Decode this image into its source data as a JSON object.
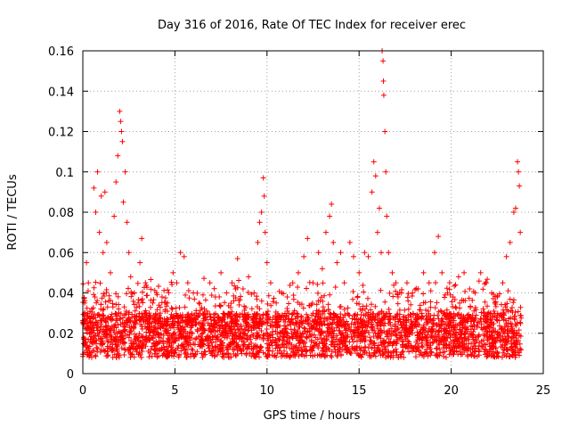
{
  "chart_data": {
    "type": "scatter",
    "title": "Day 316 of 2016, Rate Of TEC Index for receiver erec",
    "xlabel": "GPS time / hours",
    "ylabel": "ROTI / TECUs",
    "xlim": [
      0,
      25
    ],
    "ylim": [
      0,
      0.16
    ],
    "xticks": [
      0,
      5,
      10,
      15,
      20,
      25
    ],
    "xtick_labels": [
      "0",
      "5",
      "10",
      "15",
      "20",
      "25"
    ],
    "yticks": [
      0,
      0.02,
      0.04,
      0.06,
      0.08,
      0.1,
      0.12,
      0.14,
      0.16
    ],
    "ytick_labels": [
      "0",
      "0.02",
      "0.04",
      "0.06",
      "0.08",
      "0.1",
      "0.12",
      "0.14",
      "0.16"
    ],
    "grid": true,
    "marker": "plus",
    "series_color": "#ff0000",
    "x_data_range": [
      0,
      23.8
    ],
    "series": [
      {
        "points": [
          [
            0.05,
            0.018
          ],
          [
            0.1,
            0.035
          ],
          [
            0.2,
            0.055
          ],
          [
            0.3,
            0.045
          ],
          [
            0.45,
            0.025
          ],
          [
            0.6,
            0.092
          ],
          [
            0.7,
            0.08
          ],
          [
            0.8,
            0.1
          ],
          [
            0.9,
            0.07
          ],
          [
            1.0,
            0.088
          ],
          [
            1.1,
            0.06
          ],
          [
            1.2,
            0.09
          ],
          [
            1.3,
            0.065
          ],
          [
            1.5,
            0.05
          ],
          [
            1.7,
            0.078
          ],
          [
            1.8,
            0.095
          ],
          [
            1.9,
            0.108
          ],
          [
            2.0,
            0.13
          ],
          [
            2.05,
            0.125
          ],
          [
            2.1,
            0.12
          ],
          [
            2.15,
            0.115
          ],
          [
            2.2,
            0.085
          ],
          [
            2.3,
            0.1
          ],
          [
            2.4,
            0.075
          ],
          [
            2.5,
            0.06
          ],
          [
            2.6,
            0.048
          ],
          [
            2.8,
            0.04
          ],
          [
            3.0,
            0.035
          ],
          [
            3.1,
            0.055
          ],
          [
            3.2,
            0.067
          ],
          [
            3.4,
            0.045
          ],
          [
            3.6,
            0.03
          ],
          [
            3.8,
            0.035
          ],
          [
            4.0,
            0.04
          ],
          [
            4.3,
            0.038
          ],
          [
            4.6,
            0.035
          ],
          [
            4.9,
            0.05
          ],
          [
            5.1,
            0.045
          ],
          [
            5.3,
            0.06
          ],
          [
            5.5,
            0.058
          ],
          [
            5.7,
            0.045
          ],
          [
            6.0,
            0.04
          ],
          [
            6.3,
            0.035
          ],
          [
            6.6,
            0.032
          ],
          [
            6.9,
            0.045
          ],
          [
            7.2,
            0.038
          ],
          [
            7.5,
            0.05
          ],
          [
            7.8,
            0.04
          ],
          [
            8.1,
            0.045
          ],
          [
            8.4,
            0.057
          ],
          [
            8.7,
            0.042
          ],
          [
            9.0,
            0.048
          ],
          [
            9.3,
            0.04
          ],
          [
            9.5,
            0.065
          ],
          [
            9.6,
            0.075
          ],
          [
            9.7,
            0.08
          ],
          [
            9.8,
            0.097
          ],
          [
            9.85,
            0.088
          ],
          [
            9.9,
            0.07
          ],
          [
            10.0,
            0.055
          ],
          [
            10.2,
            0.045
          ],
          [
            10.5,
            0.035
          ],
          [
            10.8,
            0.04
          ],
          [
            11.1,
            0.038
          ],
          [
            11.4,
            0.045
          ],
          [
            11.7,
            0.05
          ],
          [
            12.0,
            0.058
          ],
          [
            12.2,
            0.067
          ],
          [
            12.5,
            0.045
          ],
          [
            12.8,
            0.06
          ],
          [
            13.0,
            0.052
          ],
          [
            13.2,
            0.07
          ],
          [
            13.4,
            0.078
          ],
          [
            13.5,
            0.084
          ],
          [
            13.6,
            0.065
          ],
          [
            13.8,
            0.055
          ],
          [
            14.0,
            0.06
          ],
          [
            14.2,
            0.045
          ],
          [
            14.5,
            0.065
          ],
          [
            14.7,
            0.058
          ],
          [
            15.0,
            0.05
          ],
          [
            15.3,
            0.06
          ],
          [
            15.5,
            0.058
          ],
          [
            15.7,
            0.09
          ],
          [
            15.8,
            0.105
          ],
          [
            15.9,
            0.098
          ],
          [
            16.0,
            0.07
          ],
          [
            16.1,
            0.082
          ],
          [
            16.2,
            0.06
          ],
          [
            16.25,
            0.16
          ],
          [
            16.3,
            0.155
          ],
          [
            16.32,
            0.145
          ],
          [
            16.34,
            0.138
          ],
          [
            16.4,
            0.12
          ],
          [
            16.45,
            0.1
          ],
          [
            16.5,
            0.078
          ],
          [
            16.6,
            0.06
          ],
          [
            16.8,
            0.05
          ],
          [
            17.0,
            0.045
          ],
          [
            17.3,
            0.04
          ],
          [
            17.6,
            0.045
          ],
          [
            17.9,
            0.04
          ],
          [
            18.2,
            0.042
          ],
          [
            18.5,
            0.05
          ],
          [
            18.8,
            0.045
          ],
          [
            19.1,
            0.06
          ],
          [
            19.3,
            0.068
          ],
          [
            19.5,
            0.05
          ],
          [
            19.8,
            0.04
          ],
          [
            20.1,
            0.038
          ],
          [
            20.4,
            0.048
          ],
          [
            20.7,
            0.05
          ],
          [
            21.0,
            0.042
          ],
          [
            21.3,
            0.04
          ],
          [
            21.6,
            0.05
          ],
          [
            21.9,
            0.045
          ],
          [
            22.2,
            0.04
          ],
          [
            22.5,
            0.038
          ],
          [
            22.8,
            0.045
          ],
          [
            23.0,
            0.058
          ],
          [
            23.2,
            0.065
          ],
          [
            23.4,
            0.08
          ],
          [
            23.5,
            0.082
          ],
          [
            23.6,
            0.105
          ],
          [
            23.65,
            0.1
          ],
          [
            23.7,
            0.093
          ],
          [
            23.75,
            0.07
          ]
        ]
      }
    ]
  }
}
